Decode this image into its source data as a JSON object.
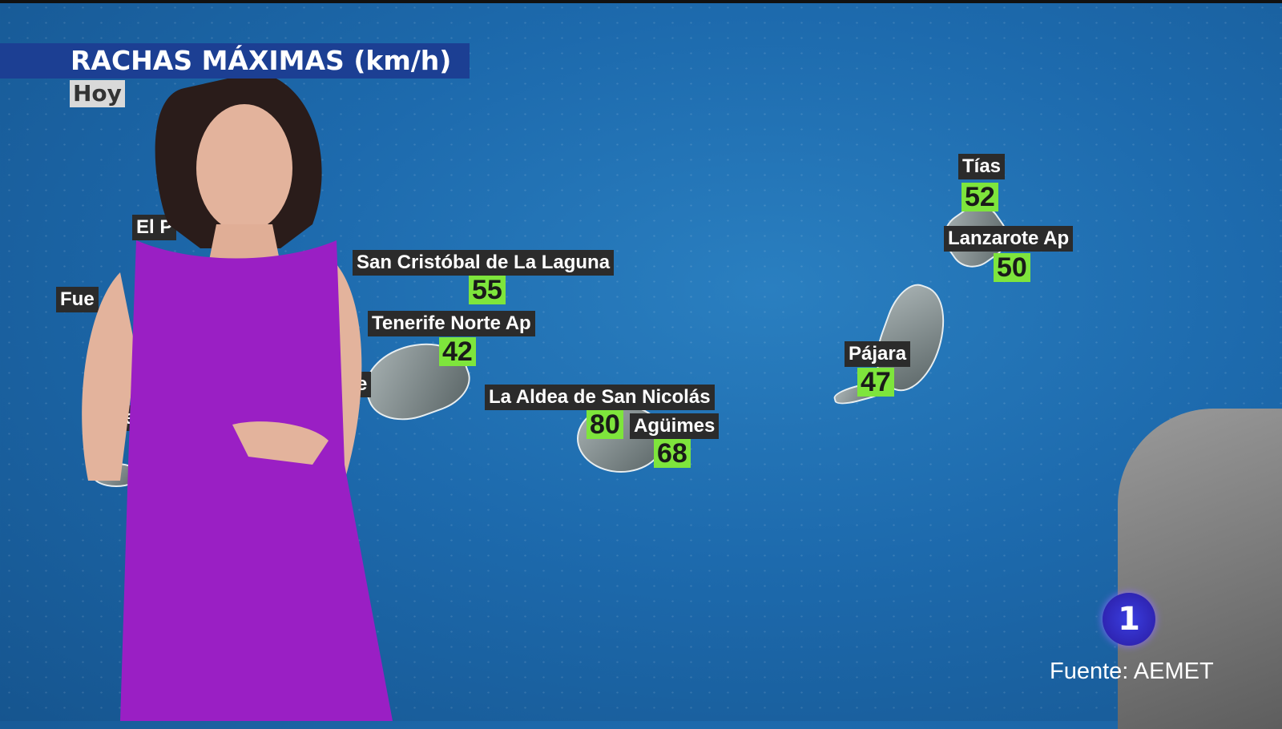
{
  "header": {
    "title": "RACHAS MÁXIMAS (km/h)",
    "subtitle": "Hoy"
  },
  "stations": [
    {
      "name": "Tías",
      "value": "52"
    },
    {
      "name": "Lanzarote Ap",
      "value": "50"
    },
    {
      "name": "San Cristóbal de La Laguna",
      "value": "55"
    },
    {
      "name": "Tenerife Norte Ap",
      "value": "42"
    },
    {
      "name": "La Aldea de San Nicolás",
      "value": "80"
    },
    {
      "name": "Agüimes",
      "value": "68"
    },
    {
      "name": "Pájara",
      "value": "47"
    }
  ],
  "partial_labels": [
    "El P",
    "Fue",
    "e",
    "err"
  ],
  "colors": {
    "value_bg": "#7ee53c",
    "label_bg": "#2b2b2b",
    "title_bg": "#1c3f93"
  },
  "channel_logo": "1",
  "source": "Fuente: AEMET"
}
